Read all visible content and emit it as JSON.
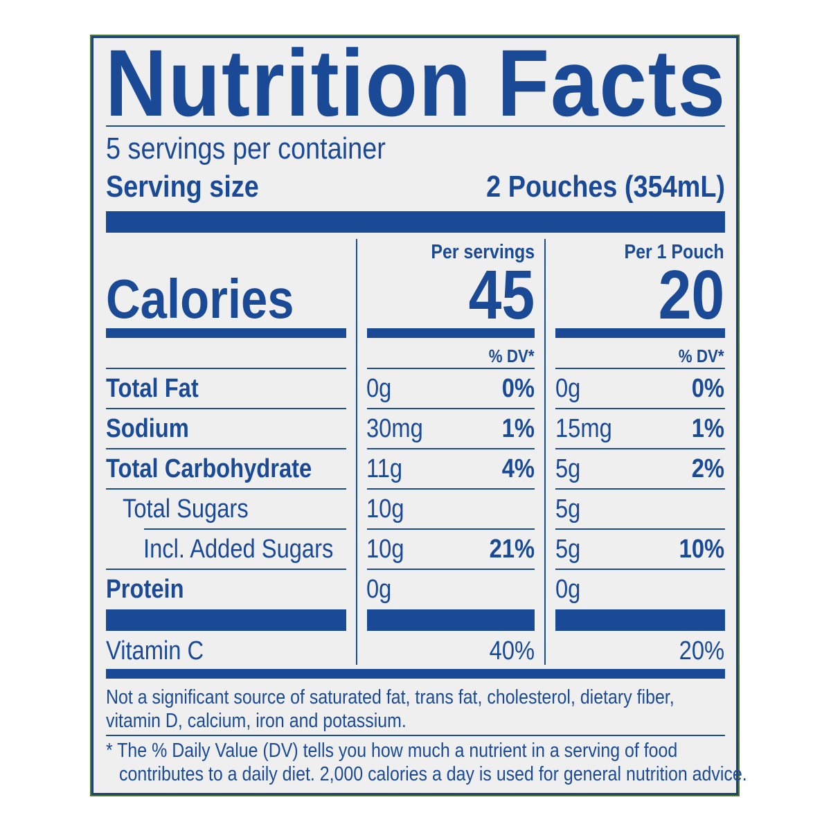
{
  "title": "Nutrition Facts",
  "servings_per_container": "5 servings per container",
  "serving_size": {
    "label": "Serving size",
    "value": "2 Pouches (354mL)"
  },
  "calories": {
    "label": "Calories"
  },
  "columns": [
    {
      "header": "Per servings",
      "calories": "45",
      "dv_label": "% DV*"
    },
    {
      "header": "Per 1 Pouch",
      "calories": "20",
      "dv_label": "% DV*"
    }
  ],
  "nutrients": [
    {
      "label": "Total Fat",
      "bold": true,
      "indent": 0,
      "values": [
        {
          "amount": "0g",
          "dv": "0%"
        },
        {
          "amount": "0g",
          "dv": "0%"
        }
      ]
    },
    {
      "label": "Sodium",
      "bold": true,
      "indent": 0,
      "values": [
        {
          "amount": "30mg",
          "dv": "1%"
        },
        {
          "amount": "15mg",
          "dv": "1%"
        }
      ]
    },
    {
      "label": "Total Carbohydrate",
      "bold": true,
      "indent": 0,
      "values": [
        {
          "amount": "11g",
          "dv": "4%"
        },
        {
          "amount": "5g",
          "dv": "2%"
        }
      ]
    },
    {
      "label": "Total Sugars",
      "bold": false,
      "indent": 1,
      "values": [
        {
          "amount": "10g",
          "dv": ""
        },
        {
          "amount": "5g",
          "dv": ""
        }
      ]
    },
    {
      "label": "Incl. Added Sugars",
      "bold": false,
      "indent": 2,
      "values": [
        {
          "amount": "10g",
          "dv": "21%"
        },
        {
          "amount": "5g",
          "dv": "10%"
        }
      ]
    },
    {
      "label": "Protein",
      "bold": true,
      "indent": 0,
      "values": [
        {
          "amount": "0g",
          "dv": ""
        },
        {
          "amount": "0g",
          "dv": ""
        }
      ]
    }
  ],
  "vitamins": [
    {
      "label": "Vitamin C",
      "values": [
        "40%",
        "20%"
      ]
    }
  ],
  "footnote_1": [
    "Not a significant source of saturated fat, trans fat, cholesterol, dietary fiber,",
    "vitamin D, calcium, iron and potassium."
  ],
  "footnote_2": [
    "* The % Daily Value (DV) tells you how much a nutrient in a serving of food",
    "contributes to a daily diet. 2,000 calories a day is used for general nutrition advice."
  ],
  "colors": {
    "ink": "#1a4a96",
    "background": "#efefef",
    "border": "#1d3f7a"
  }
}
